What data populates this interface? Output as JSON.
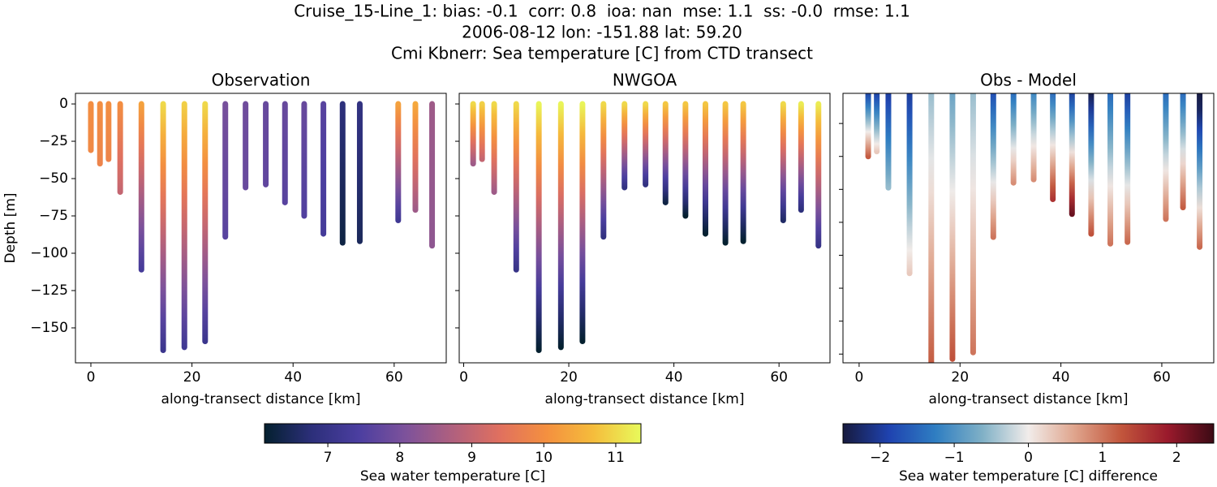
{
  "figure": {
    "title": [
      "Cruise_15-Line_1: bias: -0.1  corr: 0.8  ioa: nan  mse: 1.1  ss: -0.0  rmse: 1.1",
      "2006-08-12 lon: -151.88 lat: 59.20",
      "Cmi Kbnerr: Sea temperature [C] from CTD transect"
    ]
  },
  "chart_data": [
    {
      "type": "cast",
      "title": "Observation",
      "xlabel": "along-transect distance [km]",
      "ylabel": "Depth [m]",
      "colorbar": 0,
      "xlim": [
        -3.05,
        70.3
      ],
      "xticks": [
        0,
        20,
        40,
        60
      ],
      "ylim": [
        -173.4,
        7.1
      ],
      "yticks": [
        0,
        {
          "value": -25,
          "label": "−25"
        },
        {
          "value": -50,
          "label": "−50"
        },
        {
          "value": -75,
          "label": "−75"
        },
        {
          "value": -100,
          "label": "−100"
        },
        {
          "value": -125,
          "label": "−125"
        },
        {
          "value": -150,
          "label": "−150"
        }
      ],
      "x": [
        0,
        1.8,
        3.5,
        5.8,
        10,
        14.3,
        18.5,
        22.6,
        26.6,
        30.6,
        34.6,
        38.4,
        42.2,
        46,
        49.8,
        53.2,
        60.8,
        64.2,
        67.5
      ],
      "depth": [
        -31,
        -40,
        -37,
        -59,
        -111,
        -165,
        -163,
        -159,
        -89,
        -56,
        -54,
        -66,
        -75,
        -87,
        -93,
        -92,
        -78,
        -71,
        -95
      ],
      "top": [
        10.0,
        10.0,
        10.0,
        10.0,
        10.3,
        11.0,
        10.9,
        11.0,
        8.0,
        7.9,
        7.8,
        7.8,
        7.8,
        7.6,
        6.8,
        6.9,
        10.3,
        10.4,
        8.5
      ],
      "bottom": [
        9.9,
        9.8,
        9.8,
        9.0,
        7.3,
        7.1,
        7.2,
        7.1,
        7.6,
        7.8,
        7.7,
        7.6,
        7.5,
        7.3,
        6.3,
        6.5,
        7.2,
        8.5,
        8.3
      ]
    },
    {
      "type": "cast",
      "title": "NWGOA",
      "xlabel": "along-transect distance [km]",
      "colorbar": 0,
      "xlim": [
        -0.85,
        69.7
      ],
      "xticks": [
        0,
        20,
        40,
        60
      ],
      "ylim": [
        -173.4,
        7.1
      ],
      "yticks": [
        0,
        -25,
        -50,
        -75,
        -100,
        -125,
        -150
      ],
      "x": [
        1.8,
        3.5,
        5.8,
        10,
        14.3,
        18.5,
        22.6,
        26.6,
        30.6,
        34.6,
        38.4,
        42.2,
        46,
        49.8,
        53.2,
        60.8,
        64.2,
        67.5
      ],
      "depth": [
        -40,
        -37,
        -59,
        -111,
        -165,
        -163,
        -159,
        -89,
        -56,
        -54,
        -66,
        -75,
        -87,
        -93,
        -92,
        -78,
        -71,
        -95
      ],
      "top": [
        11.0,
        10.9,
        11.0,
        11.0,
        11.3,
        11.3,
        11.3,
        11.0,
        11.0,
        11.0,
        10.8,
        10.8,
        10.8,
        10.8,
        10.8,
        11.0,
        11.2,
        11.2
      ],
      "bottom": [
        8.5,
        9.0,
        8.5,
        7.0,
        6.0,
        6.0,
        6.0,
        6.9,
        6.9,
        6.9,
        6.3,
        6.1,
        6.0,
        6.0,
        6.0,
        6.6,
        6.8,
        7.0
      ]
    },
    {
      "type": "cast",
      "title": "Obs - Model",
      "xlabel": "along-transect distance [km]",
      "colorbar": 1,
      "xlim": [
        -3.2,
        70.3
      ],
      "xticks": [
        0,
        20,
        40,
        60
      ],
      "ylim": [
        -165.3,
        -1.7
      ],
      "yticks": [
        -20,
        -40,
        -60,
        -80,
        -100,
        -120,
        -140,
        -160
      ],
      "x": [
        1.8,
        3.5,
        5.8,
        10,
        14.3,
        18.5,
        22.6,
        26.6,
        30.6,
        34.6,
        38.4,
        42.2,
        46,
        49.8,
        53.2,
        60.8,
        64.2,
        67.5
      ],
      "depth": [
        -40,
        -37,
        -59,
        -111,
        -165,
        -163,
        -159,
        -89,
        -56,
        -54,
        -66,
        -75,
        -87,
        -93,
        -92,
        -78,
        -71,
        -95
      ],
      "top": [
        -2.0,
        -2.0,
        -2.0,
        -2.0,
        -0.5,
        -0.8,
        -0.5,
        -1.8,
        -1.5,
        -1.2,
        -1.5,
        -2.0,
        -2.5,
        -1.5,
        -2.0,
        -1.5,
        -1.5,
        -2.8
      ],
      "bottom": [
        1.2,
        0.3,
        -0.5,
        0.3,
        1.2,
        1.3,
        1.0,
        1.0,
        0.8,
        0.8,
        1.6,
        2.2,
        1.3,
        1.0,
        1.1,
        1.0,
        1.2,
        1.1
      ]
    }
  ],
  "colorbars": [
    {
      "label": "Sea water temperature [C]",
      "lim": [
        6.12,
        11.35
      ],
      "ticks": [
        7,
        8,
        9,
        10,
        11
      ],
      "colors": [
        "#04202f",
        "#2c2f7a",
        "#4b3ea0",
        "#7d529b",
        "#b0607e",
        "#e0705f",
        "#f4903f",
        "#f5bd3c",
        "#e8fa5b"
      ]
    },
    {
      "label": "Sea water temperature [C] difference",
      "lim": [
        -2.5,
        2.5
      ],
      "ticks": [
        {
          "value": -2,
          "label": "−2"
        },
        {
          "value": -1,
          "label": "−1"
        },
        0,
        1,
        2
      ],
      "colors": [
        "#171a3e",
        "#1f43b0",
        "#2f7ec2",
        "#7fb0c6",
        "#f1ecea",
        "#dfa48c",
        "#c2563c",
        "#9a1a2c",
        "#3b0a14"
      ]
    }
  ]
}
